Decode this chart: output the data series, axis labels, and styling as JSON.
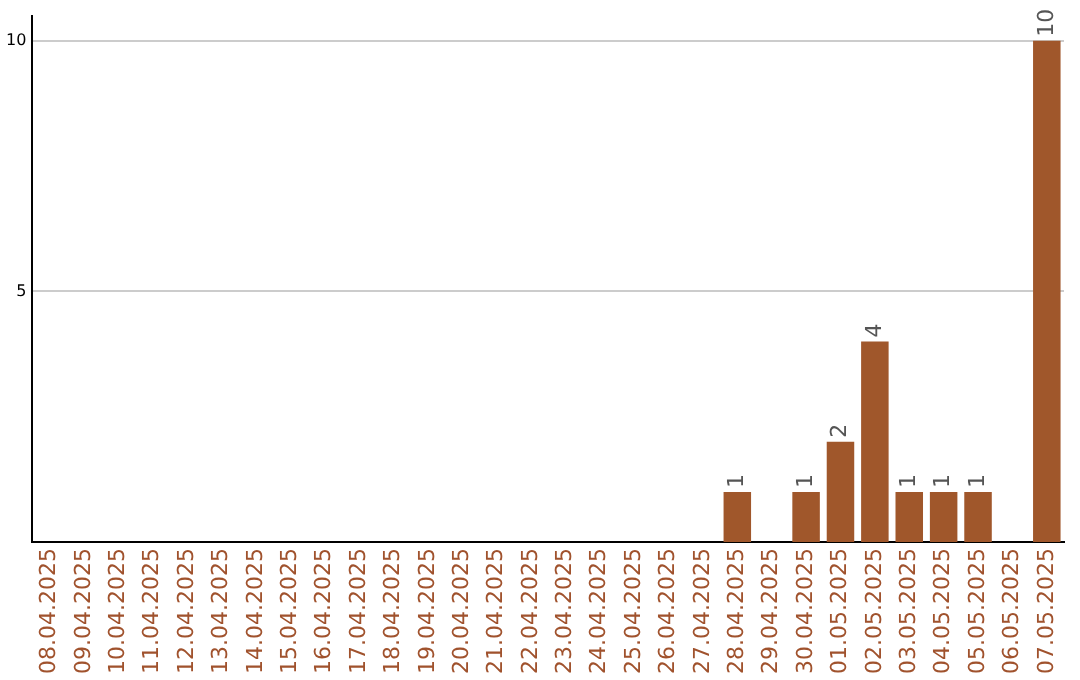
{
  "chart_data": {
    "type": "bar",
    "categories": [
      "08.04.2025",
      "09.04.2025",
      "10.04.2025",
      "11.04.2025",
      "12.04.2025",
      "13.04.2025",
      "14.04.2025",
      "15.04.2025",
      "16.04.2025",
      "17.04.2025",
      "18.04.2025",
      "19.04.2025",
      "20.04.2025",
      "21.04.2025",
      "22.04.2025",
      "23.04.2025",
      "24.04.2025",
      "25.04.2025",
      "26.04.2025",
      "27.04.2025",
      "28.04.2025",
      "29.04.2025",
      "30.04.2025",
      "01.05.2025",
      "02.05.2025",
      "03.05.2025",
      "04.05.2025",
      "05.05.2025",
      "06.05.2025",
      "07.05.2025"
    ],
    "values": [
      0,
      0,
      0,
      0,
      0,
      0,
      0,
      0,
      0,
      0,
      0,
      0,
      0,
      0,
      0,
      0,
      0,
      0,
      0,
      0,
      1,
      0,
      1,
      2,
      4,
      1,
      1,
      1,
      0,
      10
    ],
    "value_labels": [
      null,
      null,
      null,
      null,
      null,
      null,
      null,
      null,
      null,
      null,
      null,
      null,
      null,
      null,
      null,
      null,
      null,
      null,
      null,
      null,
      "1",
      null,
      "1",
      "2",
      "4",
      "1",
      "1",
      "1",
      null,
      "10"
    ],
    "color": "#a0572b",
    "ylim": [
      0,
      10.5
    ],
    "yticks": [
      5,
      10
    ],
    "grid": "y",
    "legend": false
  }
}
